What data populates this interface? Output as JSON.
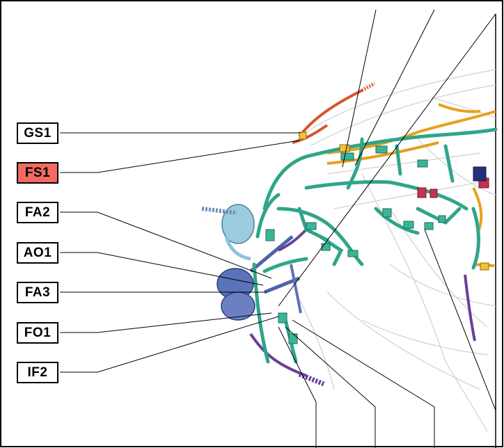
{
  "labels": [
    {
      "id": "GS1",
      "text": "GS1",
      "highlighted": false
    },
    {
      "id": "FS1",
      "text": "FS1",
      "highlighted": true
    },
    {
      "id": "FA2",
      "text": "FA2",
      "highlighted": false
    },
    {
      "id": "AO1",
      "text": "AO1",
      "highlighted": false
    },
    {
      "id": "FA3",
      "text": "FA3",
      "highlighted": false
    },
    {
      "id": "FO1",
      "text": "FO1",
      "highlighted": false
    },
    {
      "id": "IF2",
      "text": "IF2",
      "highlighted": false
    }
  ],
  "colors": {
    "highlight": "#f26a63",
    "harness_main": "#2fa58a",
    "harness_orange": "#e8a020",
    "harness_red": "#d8552c",
    "harness_blue": "#5b73b8",
    "harness_purple": "#6a3f9a",
    "harness_lightblue": "#8fc3dc",
    "body_outline": "#c8c8c8"
  }
}
